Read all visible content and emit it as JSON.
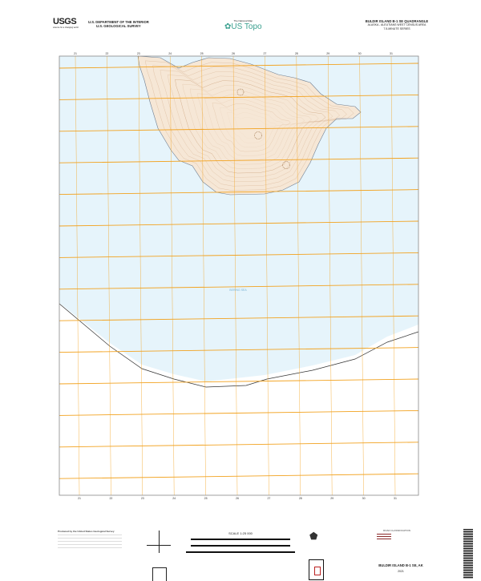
{
  "header": {
    "agency_logo": "USGS",
    "agency_tagline": "science for a changing world",
    "dept_line1": "U.S. DEPARTMENT OF THE INTERIOR",
    "dept_line2": "U.S. GEOLOGICAL SURVEY",
    "product_small": "The National Map",
    "product_name": "US Topo",
    "quad_title": "BULDIR ISLAND B-1 SE QUADRANGLE",
    "quad_region": "ALASKA - ALEUTIANS WEST CENSUS AREA",
    "quad_series": "7.5-MINUTE SERIES"
  },
  "map": {
    "water_label": "BERING SEA",
    "grid_easting_labels": [
      "21",
      "22",
      "23",
      "24",
      "25",
      "26",
      "27",
      "28",
      "29",
      "30",
      "31"
    ],
    "colors": {
      "water": "#e6f4fb",
      "land": "#fdf6ef",
      "contour": "#c79a72",
      "grid": "#f2a21f",
      "neatline": "#888888",
      "shoreline": "#333333"
    }
  },
  "footer": {
    "producer": "Produced by the United States Geological Survey",
    "scale": "SCALE 1:25 000",
    "road_legend_title": "ROAD CLASSIFICATION",
    "sheet_name": "BULDIR ISLAND B-1 SE, AK",
    "year": "2021"
  }
}
